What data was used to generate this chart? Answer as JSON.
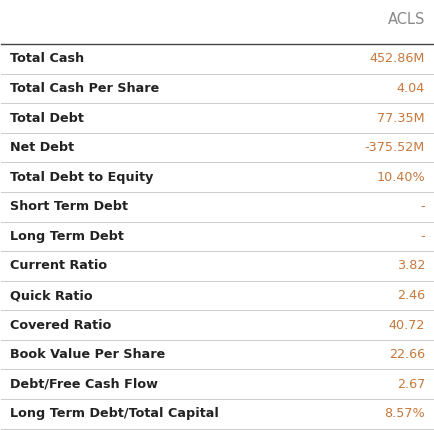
{
  "title": "ACLS",
  "title_color": "#888888",
  "rows": [
    {
      "label": "Total Cash",
      "value": "452.86M"
    },
    {
      "label": "Total Cash Per Share",
      "value": "4.04"
    },
    {
      "label": "Total Debt",
      "value": "77.35M"
    },
    {
      "label": "Net Debt",
      "value": "-375.52M"
    },
    {
      "label": "Total Debt to Equity",
      "value": "10.40%"
    },
    {
      "label": "Short Term Debt",
      "value": "-"
    },
    {
      "label": "Long Term Debt",
      "value": "-"
    },
    {
      "label": "Current Ratio",
      "value": "3.82"
    },
    {
      "label": "Quick Ratio",
      "value": "2.46"
    },
    {
      "label": "Covered Ratio",
      "value": "40.72"
    },
    {
      "label": "Book Value Per Share",
      "value": "22.66"
    },
    {
      "label": "Debt/Free Cash Flow",
      "value": "2.67"
    },
    {
      "label": "Long Term Debt/Total Capital",
      "value": "8.57%"
    }
  ],
  "label_color": "#222222",
  "value_color": "#c8783c",
  "background_color": "#ffffff",
  "line_color": "#cccccc",
  "header_line_color": "#444444",
  "label_fontsize": 9.2,
  "value_fontsize": 9.2,
  "title_fontsize": 10.5
}
